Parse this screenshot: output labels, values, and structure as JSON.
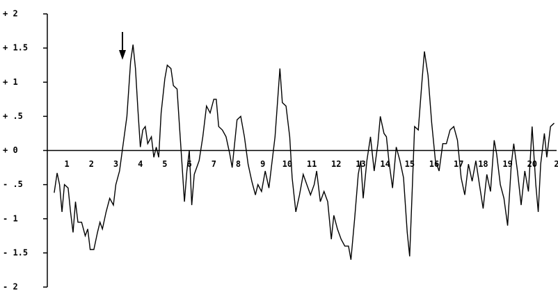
{
  "chart_data": {
    "type": "line",
    "x": [
      0.48,
      0.6,
      0.7,
      0.8,
      0.9,
      1.05,
      1.15,
      1.25,
      1.35,
      1.45,
      1.6,
      1.75,
      1.85,
      1.95,
      2.1,
      2.25,
      2.35,
      2.45,
      2.6,
      2.75,
      2.9,
      3.0,
      3.15,
      3.3,
      3.45,
      3.6,
      3.7,
      3.8,
      3.9,
      4.0,
      4.1,
      4.2,
      4.3,
      4.45,
      4.55,
      4.65,
      4.75,
      4.85,
      5.0,
      5.1,
      5.25,
      5.35,
      5.5,
      5.6,
      5.7,
      5.8,
      5.9,
      6.0,
      6.1,
      6.2,
      6.4,
      6.55,
      6.7,
      6.85,
      7.0,
      7.1,
      7.2,
      7.35,
      7.5,
      7.65,
      7.75,
      7.85,
      7.95,
      8.1,
      8.25,
      8.4,
      8.55,
      8.7,
      8.8,
      8.95,
      9.1,
      9.25,
      9.35,
      9.5,
      9.6,
      9.7,
      9.8,
      9.95,
      10.1,
      10.2,
      10.35,
      10.5,
      10.65,
      10.8,
      10.95,
      11.1,
      11.2,
      11.35,
      11.5,
      11.65,
      11.8,
      11.9,
      12.05,
      12.2,
      12.35,
      12.5,
      12.6,
      12.75,
      12.9,
      13.0,
      13.1,
      13.25,
      13.4,
      13.55,
      13.7,
      13.8,
      13.95,
      14.05,
      14.15,
      14.3,
      14.45,
      14.6,
      14.75,
      14.9,
      15.0,
      15.1,
      15.2,
      15.35,
      15.5,
      15.6,
      15.75,
      15.9,
      16.05,
      16.2,
      16.35,
      16.5,
      16.65,
      16.8,
      16.95,
      17.1,
      17.25,
      17.4,
      17.55,
      17.7,
      17.85,
      18.0,
      18.15,
      18.3,
      18.45,
      18.55,
      18.7,
      18.85,
      19.0,
      19.15,
      19.25,
      19.4,
      19.55,
      19.7,
      19.85,
      20.0,
      20.15,
      20.25,
      20.35,
      20.5,
      20.6,
      20.75,
      20.9
    ],
    "series": [
      {
        "color": "#000000",
        "values": [
          -0.62,
          -0.33,
          -0.5,
          -0.9,
          -0.5,
          -0.55,
          -0.9,
          -1.2,
          -0.75,
          -1.05,
          -1.05,
          -1.25,
          -1.15,
          -1.45,
          -1.45,
          -1.2,
          -1.05,
          -1.15,
          -0.9,
          -0.7,
          -0.8,
          -0.5,
          -0.3,
          0.1,
          0.5,
          1.3,
          1.55,
          1.2,
          0.6,
          0.05,
          0.3,
          0.35,
          0.1,
          0.2,
          -0.1,
          0.05,
          -0.1,
          0.55,
          1.05,
          1.25,
          1.2,
          0.95,
          0.9,
          0.35,
          -0.2,
          -0.75,
          -0.3,
          0,
          -0.8,
          -0.35,
          -0.15,
          0.2,
          0.65,
          0.55,
          0.75,
          0.75,
          0.35,
          0.3,
          0.2,
          -0.05,
          -0.25,
          0.1,
          0.45,
          0.5,
          0.2,
          -0.2,
          -0.45,
          -0.65,
          -0.5,
          -0.6,
          -0.3,
          -0.55,
          -0.25,
          0.2,
          0.7,
          1.2,
          0.7,
          0.65,
          0.2,
          -0.4,
          -0.9,
          -0.65,
          -0.35,
          -0.5,
          -0.65,
          -0.5,
          -0.3,
          -0.75,
          -0.6,
          -0.75,
          -1.3,
          -0.95,
          -1.15,
          -1.3,
          -1.4,
          -1.4,
          -1.6,
          -1.0,
          -0.35,
          -0.15,
          -0.7,
          -0.15,
          0.2,
          -0.3,
          0.1,
          0.5,
          0.25,
          0.2,
          -0.15,
          -0.55,
          0.05,
          -0.15,
          -0.4,
          -1.2,
          -1.55,
          -0.6,
          0.35,
          0.3,
          1.0,
          1.45,
          1.1,
          0.4,
          -0.15,
          -0.3,
          0.1,
          0.1,
          0.3,
          0.35,
          0.15,
          -0.4,
          -0.65,
          -0.2,
          -0.45,
          -0.15,
          -0.5,
          -0.85,
          -0.35,
          -0.6,
          0.15,
          -0.05,
          -0.5,
          -0.7,
          -1.1,
          -0.2,
          0.1,
          -0.3,
          -0.8,
          -0.3,
          -0.6,
          0.35,
          -0.5,
          -0.9,
          -0.2,
          0.25,
          -0.1,
          0.35,
          0.4
        ]
      }
    ],
    "xlim": [
      0.2,
      21.0
    ],
    "xticks": [
      1,
      2,
      3,
      4,
      5,
      6,
      7,
      8,
      9,
      10,
      11,
      12,
      13,
      14,
      15,
      16,
      17,
      18,
      19,
      20,
      {
        "value": 21,
        "label": "2"
      }
    ],
    "ylim": [
      -2,
      2
    ],
    "yticks": [
      {
        "value": 2,
        "label": "+ 2"
      },
      {
        "value": 1.5,
        "label": "+ 1.5"
      },
      {
        "value": 1,
        "label": "+ 1"
      },
      {
        "value": 0.5,
        "label": "+ .5"
      },
      {
        "value": 0,
        "label": "+ 0"
      },
      {
        "value": -0.5,
        "label": "- .5"
      },
      {
        "value": -1,
        "label": "- 1"
      },
      {
        "value": -1.5,
        "label": "- 1.5"
      },
      {
        "value": -2,
        "label": "- 2"
      }
    ]
  }
}
